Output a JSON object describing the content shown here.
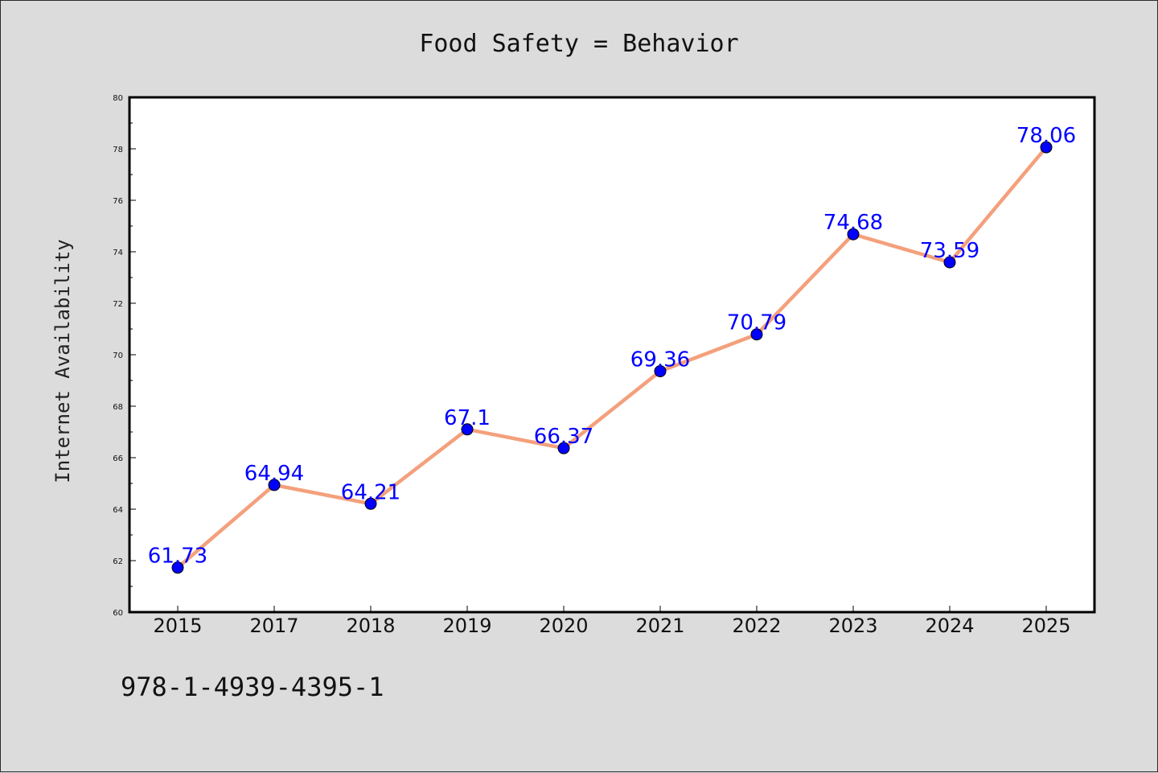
{
  "chart_data": {
    "type": "line",
    "title": "Food Safety = Behavior",
    "xlabel": "",
    "ylabel": "Internet Availability",
    "categories": [
      "2015",
      "2017",
      "2018",
      "2019",
      "2020",
      "2021",
      "2022",
      "2023",
      "2024",
      "2025"
    ],
    "values": [
      61.73,
      64.94,
      64.21,
      67.1,
      66.37,
      69.36,
      70.79,
      74.68,
      73.59,
      78.06
    ],
    "data_labels": [
      "61.73",
      "64.94",
      "64.21",
      "67.1",
      "66.37",
      "69.36",
      "70.79",
      "74.68",
      "73.59",
      "78.06"
    ],
    "ylim": [
      60,
      80
    ],
    "yticks": [
      60,
      62,
      64,
      66,
      68,
      70,
      72,
      74,
      76,
      78,
      80
    ],
    "grid": false,
    "legend": "none",
    "line_color": "#f4a07c",
    "marker_color": "#0000ff",
    "label_color": "#0000ff"
  },
  "annotation": "978-1-4939-4395-1"
}
